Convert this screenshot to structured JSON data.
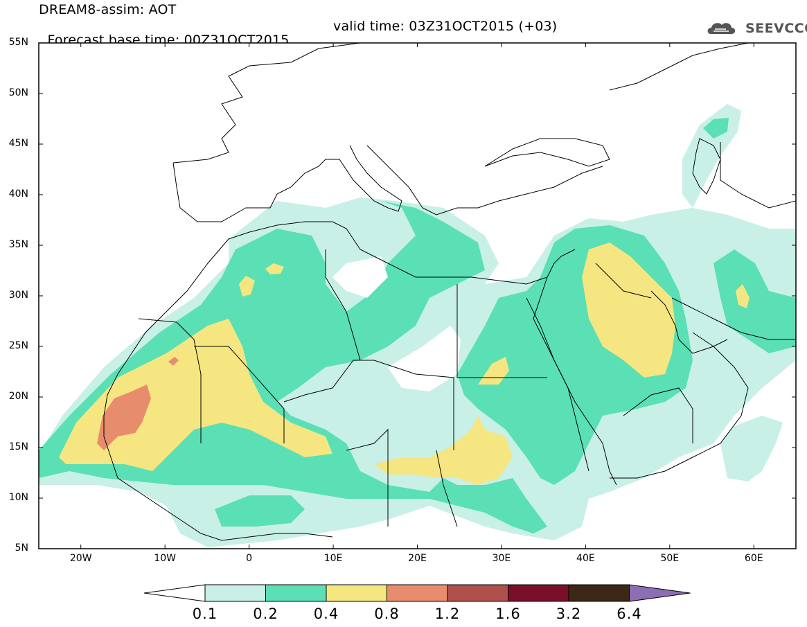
{
  "header": {
    "title": "DREAM8-assim: AOT",
    "base_time": "Forecast base time: 00Z31OCT2015",
    "valid_time": "valid time: 03Z31OCT2015 (+03)",
    "logo_text": "SEEVCCC"
  },
  "map": {
    "lat_labels": [
      "55N",
      "50N",
      "45N",
      "40N",
      "35N",
      "30N",
      "25N",
      "20N",
      "15N",
      "10N",
      "5N"
    ],
    "lon_labels": [
      "20W",
      "10W",
      "0",
      "10E",
      "20E",
      "30E",
      "40E",
      "50E",
      "60E"
    ],
    "variable": "AOT"
  },
  "legend": {
    "labels": [
      "0.1",
      "0.2",
      "0.4",
      "0.8",
      "1.2",
      "1.6",
      "3.2",
      "6.4"
    ],
    "colors": [
      "#c8f0e6",
      "#5ae0b4",
      "#f5e682",
      "#e88c6e",
      "#b0504a",
      "#7a0f2a",
      "#3c2814",
      "#8c6eb4"
    ]
  }
}
